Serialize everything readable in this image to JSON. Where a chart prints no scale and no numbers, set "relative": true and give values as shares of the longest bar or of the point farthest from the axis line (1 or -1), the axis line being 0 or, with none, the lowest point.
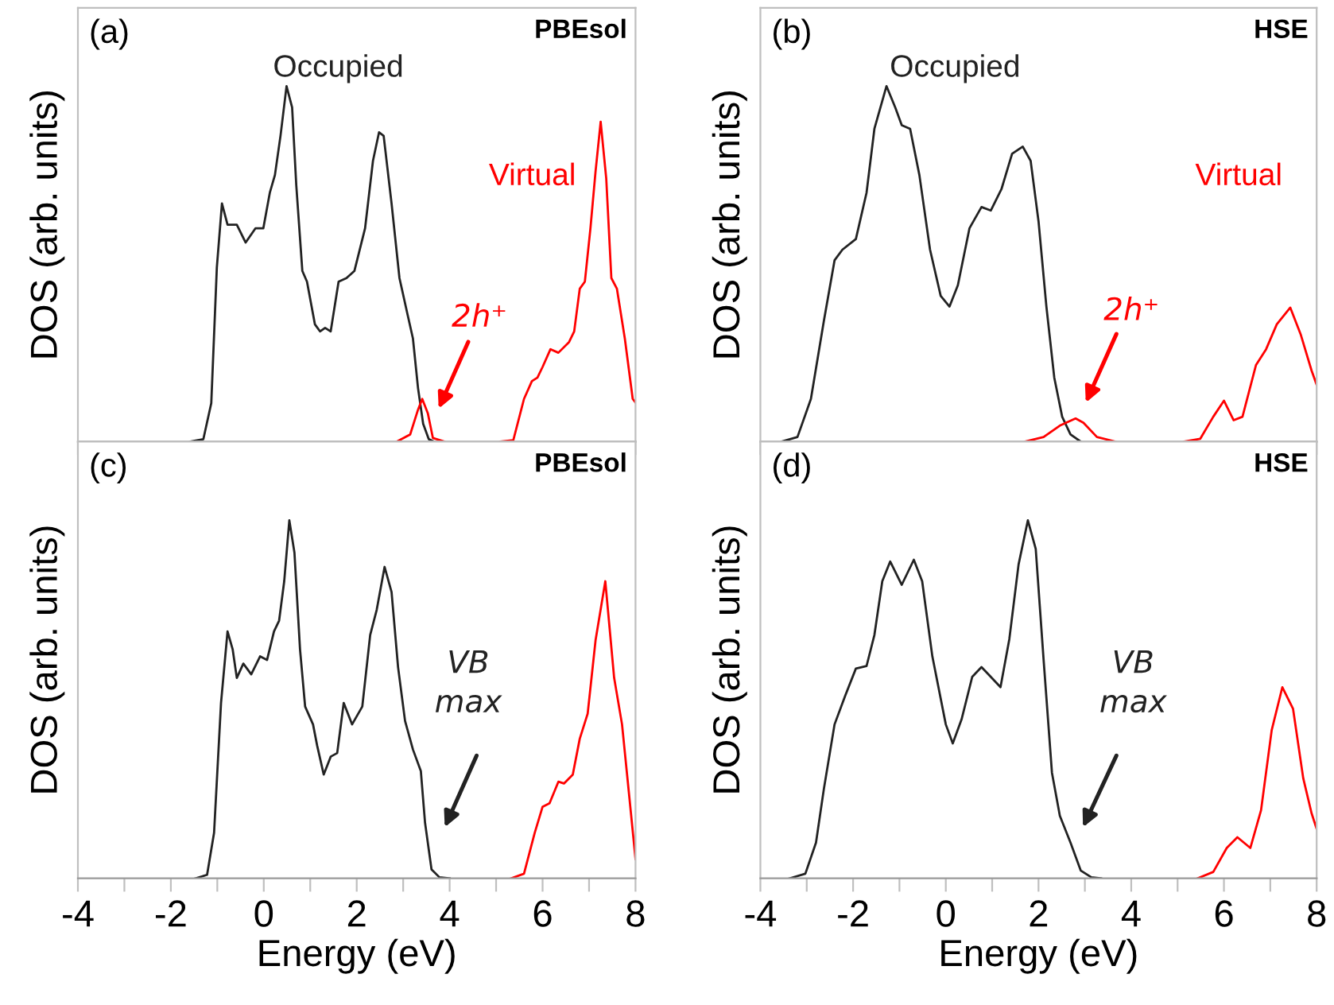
{
  "chart_data": [
    {
      "type": "line",
      "ylabel": "DOS (arb. units)",
      "relative": true,
      "xlim": [
        -4,
        8
      ],
      "xticks": [
        -4,
        {
          "value": -3,
          "label": null
        },
        -2,
        {
          "value": -1,
          "label": null
        },
        0,
        {
          "value": 1,
          "label": null
        },
        2,
        {
          "value": 3,
          "label": null
        },
        4,
        {
          "value": 5,
          "label": null
        },
        6,
        {
          "value": 7,
          "label": null
        },
        8
      ],
      "tick_labels": false,
      "annotations": [
        "(a)",
        "PBEsol",
        "Occupied",
        "Virtual",
        "2h⁺"
      ],
      "series": [
        {
          "color": "#222222",
          "x": [
            -1.58,
            -1.3,
            -1.13,
            -1.01,
            -0.9,
            -0.78,
            -0.58,
            -0.39,
            -0.18,
            -0.01,
            0.13,
            0.24,
            0.36,
            0.49,
            0.61,
            0.7,
            0.83,
            0.93,
            1.1,
            1.21,
            1.32,
            1.44,
            1.61,
            1.78,
            1.95,
            2.18,
            2.35,
            2.48,
            2.58,
            2.75,
            2.92,
            3.09,
            3.21,
            3.32,
            3.43,
            3.55,
            3.66
          ],
          "values": [
            0,
            0.007,
            0.108,
            0.49,
            0.67,
            0.61,
            0.61,
            0.56,
            0.6,
            0.6,
            0.7,
            0.75,
            0.86,
            1.0,
            0.94,
            0.72,
            0.48,
            0.45,
            0.33,
            0.31,
            0.32,
            0.31,
            0.45,
            0.46,
            0.48,
            0.6,
            0.79,
            0.87,
            0.86,
            0.67,
            0.46,
            0.36,
            0.29,
            0.15,
            0.05,
            0.007,
            0
          ]
        },
        {
          "color": "#ff0000",
          "x": [
            2.86,
            3.15,
            3.32,
            3.41,
            3.53,
            3.64,
            3.89
          ],
          "values": [
            0,
            0.02,
            0.09,
            0.12,
            0.08,
            0.01,
            0
          ]
        },
        {
          "color": "#ff0000",
          "x": [
            5.09,
            5.37,
            5.6,
            5.77,
            5.89,
            6.0,
            6.17,
            6.34,
            6.57,
            6.68,
            6.8,
            6.91,
            7.03,
            7.14,
            7.25,
            7.37,
            7.48,
            7.6,
            7.77,
            7.94,
            8.0
          ],
          "values": [
            0,
            0.004,
            0.12,
            0.17,
            0.18,
            0.21,
            0.26,
            0.25,
            0.28,
            0.31,
            0.43,
            0.45,
            0.6,
            0.76,
            0.9,
            0.74,
            0.46,
            0.43,
            0.29,
            0.12,
            0.11
          ]
        }
      ]
    },
    {
      "type": "line",
      "ylabel": "DOS (arb. units)",
      "relative": true,
      "xlim": [
        -4,
        8
      ],
      "xticks": [
        -4,
        {
          "value": -3,
          "label": null
        },
        -2,
        {
          "value": -1,
          "label": null
        },
        0,
        {
          "value": 1,
          "label": null
        },
        2,
        {
          "value": 3,
          "label": null
        },
        4,
        {
          "value": 5,
          "label": null
        },
        6,
        {
          "value": 7,
          "label": null
        },
        8
      ],
      "tick_labels": false,
      "annotations": [
        "(b)",
        "HSE",
        "Occupied",
        "Virtual",
        "2h⁺"
      ],
      "series": [
        {
          "color": "#222222",
          "x": [
            -3.54,
            -3.2,
            -2.91,
            -2.63,
            -2.4,
            -2.23,
            -1.94,
            -1.71,
            -1.54,
            -1.28,
            -1.09,
            -0.95,
            -0.77,
            -0.57,
            -0.34,
            -0.11,
            0.08,
            0.26,
            0.51,
            0.77,
            0.97,
            1.2,
            1.43,
            1.66,
            1.83,
            2.0,
            2.17,
            2.34,
            2.51,
            2.69,
            2.91
          ],
          "values": [
            0,
            0.013,
            0.12,
            0.34,
            0.51,
            0.54,
            0.57,
            0.7,
            0.88,
            1.0,
            0.94,
            0.89,
            0.88,
            0.75,
            0.54,
            0.41,
            0.38,
            0.44,
            0.6,
            0.66,
            0.65,
            0.71,
            0.81,
            0.83,
            0.79,
            0.62,
            0.38,
            0.18,
            0.07,
            0.02,
            0
          ]
        },
        {
          "color": "#ff0000",
          "x": [
            1.71,
            2.11,
            2.46,
            2.8,
            2.97,
            3.26,
            3.66
          ],
          "values": [
            0,
            0.013,
            0.045,
            0.065,
            0.053,
            0.013,
            0
          ]
        },
        {
          "color": "#ff0000",
          "x": [
            5.14,
            5.49,
            5.77,
            6.0,
            6.21,
            6.4,
            6.69,
            6.91,
            7.14,
            7.43,
            7.66,
            7.89,
            8.0
          ],
          "values": [
            0,
            0.008,
            0.07,
            0.115,
            0.06,
            0.07,
            0.215,
            0.26,
            0.33,
            0.377,
            0.3,
            0.2,
            0.16
          ]
        }
      ]
    },
    {
      "type": "line",
      "xlabel": "Energy (eV)",
      "ylabel": "DOS (arb. units)",
      "relative": true,
      "xlim": [
        -4,
        8
      ],
      "xticks": [
        -4,
        {
          "value": -3,
          "label": null
        },
        -2,
        {
          "value": -1,
          "label": null
        },
        0,
        {
          "value": 1,
          "label": null
        },
        2,
        {
          "value": 3,
          "label": null
        },
        4,
        {
          "value": 5,
          "label": null
        },
        6,
        {
          "value": 7,
          "label": null
        },
        8
      ],
      "tick_labels": "x",
      "annotations": [
        "(c)",
        "PBEsol",
        "VB\nmax"
      ],
      "series": [
        {
          "color": "#222222",
          "x": [
            -1.47,
            -1.22,
            -1.07,
            -0.92,
            -0.78,
            -0.67,
            -0.58,
            -0.44,
            -0.27,
            -0.08,
            0.07,
            0.22,
            0.33,
            0.44,
            0.55,
            0.66,
            0.78,
            0.89,
            1.06,
            1.15,
            1.29,
            1.44,
            1.58,
            1.72,
            1.9,
            2.12,
            2.29,
            2.43,
            2.6,
            2.75,
            2.89,
            3.04,
            3.21,
            3.38,
            3.47,
            3.61,
            3.78,
            4.0
          ],
          "values": [
            0,
            0.01,
            0.127,
            0.49,
            0.69,
            0.64,
            0.56,
            0.6,
            0.57,
            0.62,
            0.61,
            0.69,
            0.72,
            0.83,
            1.0,
            0.91,
            0.64,
            0.48,
            0.43,
            0.37,
            0.29,
            0.34,
            0.35,
            0.49,
            0.43,
            0.48,
            0.68,
            0.75,
            0.87,
            0.8,
            0.59,
            0.44,
            0.36,
            0.3,
            0.156,
            0.025,
            0.003,
            0
          ]
        },
        {
          "color": "#ff0000",
          "x": [
            5.32,
            5.6,
            5.83,
            6.0,
            6.15,
            6.34,
            6.46,
            6.65,
            6.8,
            6.97,
            7.14,
            7.35,
            7.54,
            7.71,
            7.88,
            8.0
          ],
          "values": [
            0,
            0.013,
            0.127,
            0.2,
            0.21,
            0.27,
            0.265,
            0.29,
            0.39,
            0.46,
            0.665,
            0.83,
            0.56,
            0.43,
            0.21,
            0.054
          ]
        }
      ]
    },
    {
      "type": "line",
      "xlabel": "Energy (eV)",
      "ylabel": "DOS (arb. units)",
      "relative": true,
      "xlim": [
        -4,
        8
      ],
      "xticks": [
        -4,
        {
          "value": -3,
          "label": null
        },
        -2,
        {
          "value": -1,
          "label": null
        },
        0,
        {
          "value": 1,
          "label": null
        },
        2,
        {
          "value": 3,
          "label": null
        },
        4,
        {
          "value": 5,
          "label": null
        },
        6,
        {
          "value": 7,
          "label": null
        },
        8
      ],
      "tick_labels": "x",
      "annotations": [
        "(d)",
        "HSE",
        "VB\nmax"
      ],
      "series": [
        {
          "color": "#222222",
          "x": [
            -3.37,
            -3.03,
            -2.8,
            -2.63,
            -2.4,
            -2.17,
            -1.94,
            -1.71,
            -1.54,
            -1.37,
            -1.2,
            -0.95,
            -0.69,
            -0.51,
            -0.29,
            0.0,
            0.15,
            0.34,
            0.57,
            0.77,
            0.97,
            1.18,
            1.37,
            1.57,
            1.77,
            1.94,
            2.11,
            2.29,
            2.46,
            2.69,
            2.91,
            3.14,
            3.35
          ],
          "values": [
            0,
            0.013,
            0.1,
            0.25,
            0.43,
            0.51,
            0.586,
            0.593,
            0.68,
            0.83,
            0.885,
            0.82,
            0.89,
            0.83,
            0.62,
            0.43,
            0.377,
            0.444,
            0.563,
            0.59,
            0.563,
            0.534,
            0.668,
            0.877,
            1.0,
            0.92,
            0.61,
            0.295,
            0.175,
            0.1,
            0.022,
            0.003,
            0
          ]
        },
        {
          "color": "#ff0000",
          "x": [
            5.43,
            5.77,
            6.06,
            6.29,
            6.57,
            6.8,
            7.03,
            7.26,
            7.49,
            7.71,
            7.89,
            8.0
          ],
          "values": [
            0,
            0.018,
            0.085,
            0.115,
            0.085,
            0.19,
            0.414,
            0.534,
            0.474,
            0.28,
            0.182,
            0.138
          ]
        }
      ]
    }
  ]
}
